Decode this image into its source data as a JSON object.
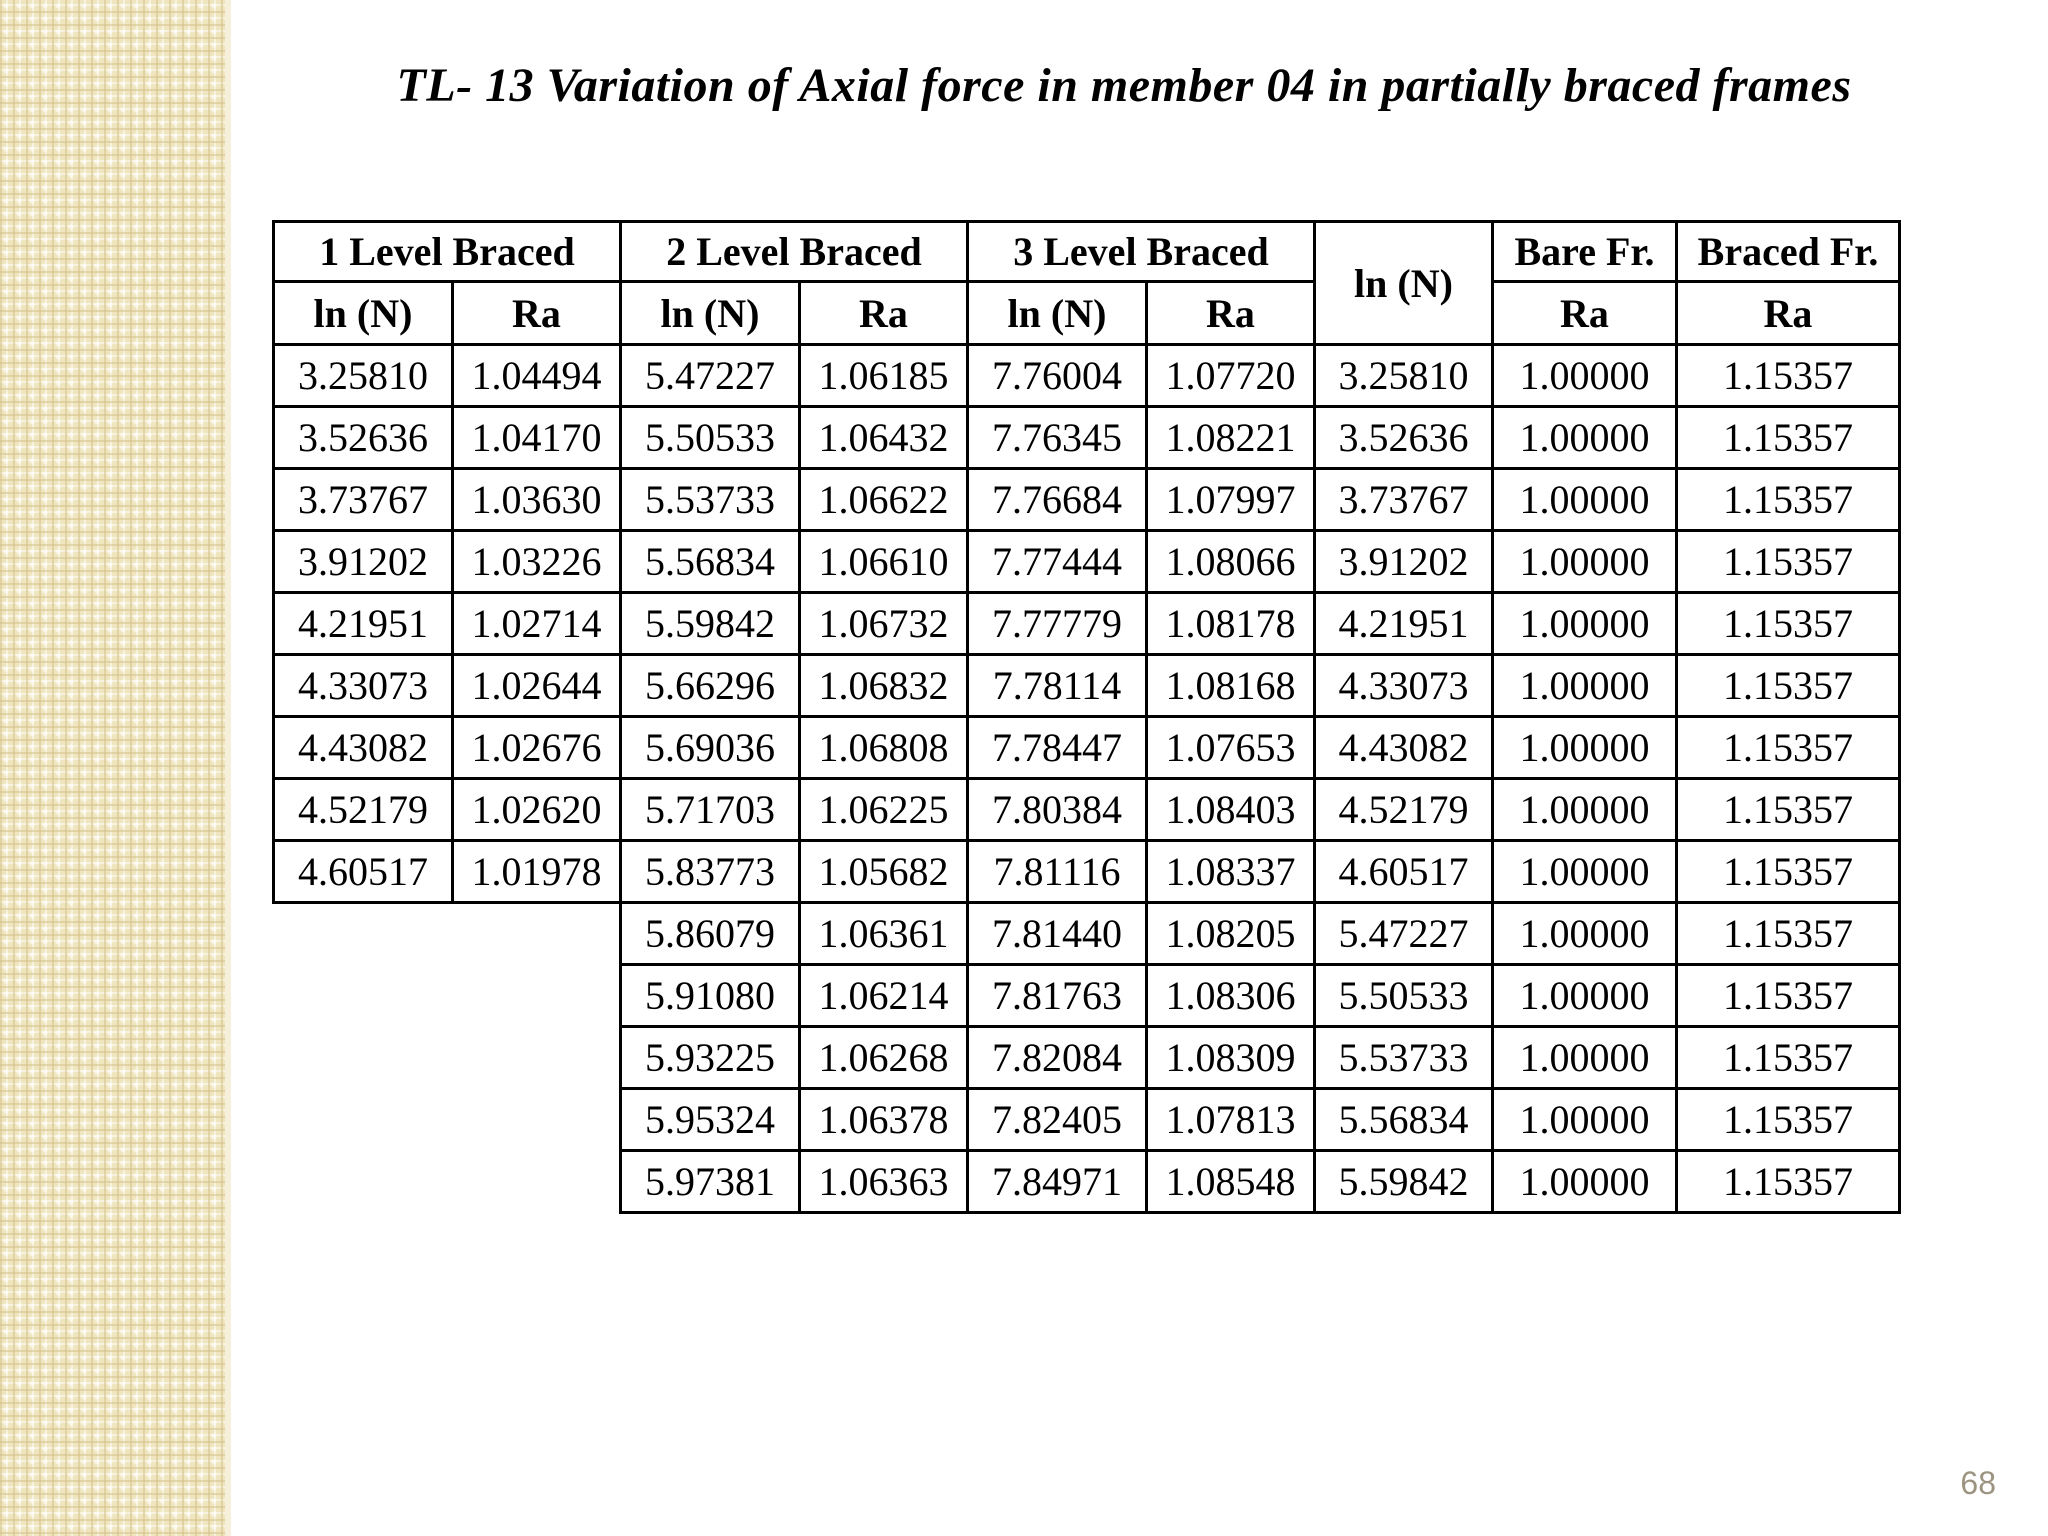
{
  "slide": {
    "title": "TL- 13 Variation of Axial force in member 04 in partially braced frames",
    "page_number": "68"
  },
  "colors": {
    "strip_accent": "#EFE5BE",
    "table_border": "#000000",
    "text": "#000000",
    "page_number_text": "#9C9480"
  },
  "table": {
    "header": {
      "row1": [
        {
          "label": "1 Level Braced",
          "colspan": 2
        },
        {
          "label": "2 Level Braced",
          "colspan": 2
        },
        {
          "label": "3 Level Braced",
          "colspan": 2
        },
        {
          "label": "ln (N)",
          "rowspan": 2
        },
        {
          "label": "Bare Fr."
        },
        {
          "label": "Braced Fr."
        }
      ],
      "row2": [
        "ln (N)",
        "Ra",
        "ln (N)",
        "Ra",
        "ln (N)",
        "Ra",
        "Ra",
        "Ra"
      ]
    },
    "rows": [
      [
        "3.25810",
        "1.04494",
        "5.47227",
        "1.06185",
        "7.76004",
        "1.07720",
        "3.25810",
        "1.00000",
        "1.15357"
      ],
      [
        "3.52636",
        "1.04170",
        "5.50533",
        "1.06432",
        "7.76345",
        "1.08221",
        "3.52636",
        "1.00000",
        "1.15357"
      ],
      [
        "3.73767",
        "1.03630",
        "5.53733",
        "1.06622",
        "7.76684",
        "1.07997",
        "3.73767",
        "1.00000",
        "1.15357"
      ],
      [
        "3.91202",
        "1.03226",
        "5.56834",
        "1.06610",
        "7.77444",
        "1.08066",
        "3.91202",
        "1.00000",
        "1.15357"
      ],
      [
        "4.21951",
        "1.02714",
        "5.59842",
        "1.06732",
        "7.77779",
        "1.08178",
        "4.21951",
        "1.00000",
        "1.15357"
      ],
      [
        "4.33073",
        "1.02644",
        "5.66296",
        "1.06832",
        "7.78114",
        "1.08168",
        "4.33073",
        "1.00000",
        "1.15357"
      ],
      [
        "4.43082",
        "1.02676",
        "5.69036",
        "1.06808",
        "7.78447",
        "1.07653",
        "4.43082",
        "1.00000",
        "1.15357"
      ],
      [
        "4.52179",
        "1.02620",
        "5.71703",
        "1.06225",
        "7.80384",
        "1.08403",
        "4.52179",
        "1.00000",
        "1.15357"
      ],
      [
        "4.60517",
        "1.01978",
        "5.83773",
        "1.05682",
        "7.81116",
        "1.08337",
        "4.60517",
        "1.00000",
        "1.15357"
      ],
      [
        "",
        "",
        "5.86079",
        "1.06361",
        "7.81440",
        "1.08205",
        "5.47227",
        "1.00000",
        "1.15357"
      ],
      [
        "",
        "",
        "5.91080",
        "1.06214",
        "7.81763",
        "1.08306",
        "5.50533",
        "1.00000",
        "1.15357"
      ],
      [
        "",
        "",
        "5.93225",
        "1.06268",
        "7.82084",
        "1.08309",
        "5.53733",
        "1.00000",
        "1.15357"
      ],
      [
        "",
        "",
        "5.95324",
        "1.06378",
        "7.82405",
        "1.07813",
        "5.56834",
        "1.00000",
        "1.15357"
      ],
      [
        "",
        "",
        "5.97381",
        "1.06363",
        "7.84971",
        "1.08548",
        "5.59842",
        "1.00000",
        "1.15357"
      ]
    ]
  }
}
